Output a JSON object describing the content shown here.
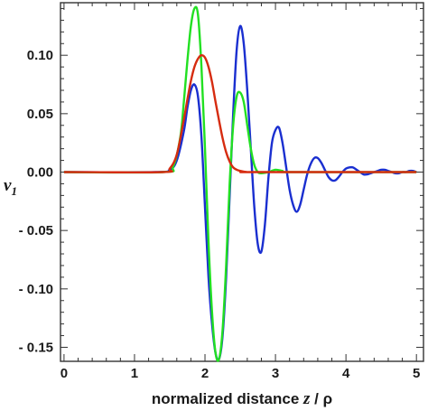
{
  "chart_data": {
    "type": "line",
    "title": "",
    "xlabel_text": "normalized distance ",
    "xlabel_var": "z",
    "xlabel_rest": " / ρ",
    "ylabel_var": "v",
    "ylabel_sub": "1",
    "xlim": [
      -0.05,
      5.1
    ],
    "ylim": [
      -0.162,
      0.145
    ],
    "xticks": [
      0,
      1,
      2,
      3,
      4,
      5
    ],
    "xtick_labels": [
      "0",
      "1",
      "2",
      "3",
      "4",
      "5"
    ],
    "yticks": [
      -0.15,
      -0.1,
      -0.05,
      0.0,
      0.05,
      0.1
    ],
    "ytick_labels": [
      "- 0.15",
      "- 0.10",
      "- 0.05",
      "0.00",
      "0.05",
      "0.10"
    ],
    "grid": false,
    "series": [
      {
        "color": "#1a2fd0",
        "x": [
          0,
          1.3,
          1.5,
          1.6,
          1.7,
          1.75,
          1.8,
          1.85,
          1.9,
          1.95,
          2.0,
          2.05,
          2.1,
          2.15,
          2.2,
          2.25,
          2.3,
          2.35,
          2.4,
          2.45,
          2.5,
          2.55,
          2.6,
          2.65,
          2.7,
          2.75,
          2.8,
          2.85,
          2.9,
          2.95,
          3.0,
          3.05,
          3.1,
          3.15,
          3.2,
          3.25,
          3.3,
          3.35,
          3.4,
          3.45,
          3.5,
          3.55,
          3.6,
          3.65,
          3.7,
          3.75,
          3.8,
          3.85,
          3.9,
          3.95,
          4.0,
          4.05,
          4.1,
          4.15,
          4.2,
          4.25,
          4.3,
          4.35,
          4.4,
          4.45,
          4.5,
          4.55,
          4.6,
          4.65,
          4.7,
          4.75,
          4.8,
          4.85,
          4.9,
          4.95,
          5.0
        ],
        "y": [
          0,
          0,
          0.002,
          0.01,
          0.035,
          0.055,
          0.07,
          0.075,
          0.065,
          0.03,
          -0.03,
          -0.09,
          -0.13,
          -0.155,
          -0.16,
          -0.14,
          -0.09,
          -0.02,
          0.05,
          0.105,
          0.125,
          0.11,
          0.07,
          0.02,
          -0.03,
          -0.062,
          -0.068,
          -0.045,
          -0.005,
          0.025,
          0.036,
          0.038,
          0.025,
          0.005,
          -0.015,
          -0.028,
          -0.034,
          -0.028,
          -0.015,
          -0.002,
          0.007,
          0.012,
          0.012,
          0.008,
          0.002,
          -0.004,
          -0.007,
          -0.007,
          -0.004,
          0.0,
          0.003,
          0.004,
          0.004,
          0.002,
          0.0,
          -0.002,
          -0.002,
          -0.001,
          0.0,
          0.001,
          0.002,
          0.002,
          0.001,
          0.0,
          -0.001,
          -0.001,
          0.0,
          0.0,
          0.001,
          0.001,
          0.0
        ]
      },
      {
        "color": "#22e022",
        "x": [
          0,
          1.4,
          1.55,
          1.65,
          1.7,
          1.75,
          1.8,
          1.85,
          1.9,
          1.95,
          2.0,
          2.05,
          2.1,
          2.15,
          2.2,
          2.25,
          2.3,
          2.35,
          2.4,
          2.45,
          2.5,
          2.55,
          2.6,
          2.65,
          2.7,
          2.75,
          2.8,
          2.9,
          3.0,
          3.1,
          3.2,
          5.0
        ],
        "y": [
          0,
          0,
          0.005,
          0.03,
          0.06,
          0.095,
          0.125,
          0.14,
          0.135,
          0.09,
          0.02,
          -0.06,
          -0.12,
          -0.155,
          -0.16,
          -0.135,
          -0.08,
          -0.01,
          0.04,
          0.065,
          0.068,
          0.06,
          0.04,
          0.02,
          0.006,
          0.0,
          -0.001,
          0.0,
          0.002,
          0.001,
          0.0,
          0.0
        ]
      },
      {
        "color": "#d62c10",
        "x": [
          0,
          1.4,
          1.5,
          1.6,
          1.7,
          1.75,
          1.8,
          1.85,
          1.9,
          1.95,
          2.0,
          2.05,
          2.1,
          2.15,
          2.2,
          2.25,
          2.3,
          2.35,
          2.4,
          2.45,
          2.5,
          2.6,
          2.7,
          5.0
        ],
        "y": [
          0,
          0,
          0.003,
          0.015,
          0.045,
          0.062,
          0.078,
          0.09,
          0.097,
          0.1,
          0.098,
          0.09,
          0.077,
          0.06,
          0.044,
          0.029,
          0.017,
          0.009,
          0.004,
          0.002,
          0.001,
          0.0,
          0.0,
          0.0
        ]
      }
    ]
  }
}
